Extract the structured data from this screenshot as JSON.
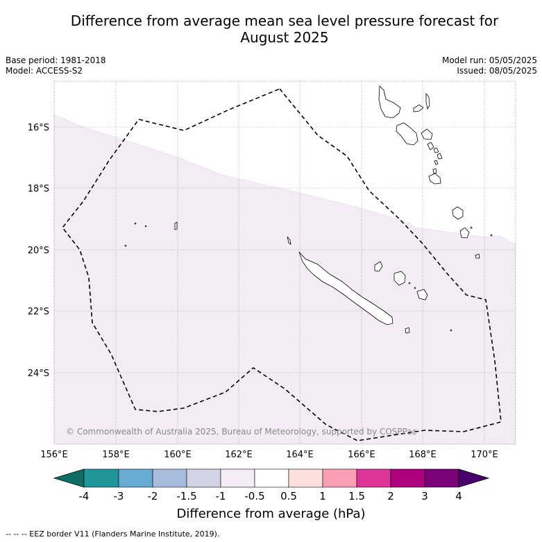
{
  "title_line1": "Difference from average mean sea level pressure forecast for",
  "title_line2": "August 2025",
  "info": {
    "base_period": "Base period: 1981-2018",
    "model": "Model: ACCESS-S2",
    "model_run": "Model run: 05/05/2025",
    "issued": "Issued: 08/05/2025"
  },
  "map": {
    "lon_range": [
      156,
      171
    ],
    "lat_range": [
      -26.3,
      -14.5
    ],
    "lon_ticks": [
      "156°E",
      "158°E",
      "160°E",
      "162°E",
      "164°E",
      "166°E",
      "168°E",
      "170°E"
    ],
    "lat_ticks": [
      "16°S",
      "18°S",
      "20°S",
      "22°S",
      "24°S"
    ],
    "anomaly_fill_color": "#f3ecf5",
    "anomaly_category": "-1 to -0.5 hPa",
    "copyright": "© Commonwealth of Australia 2025, Bureau of Meteorology, supported by COSPPac",
    "features": [
      "EEZ border (dashed)",
      "New Caledonia",
      "Vanuatu",
      "Loyalty Islands"
    ]
  },
  "colorbar": {
    "title": "Difference from average (hPa)",
    "tick_labels": [
      "-4",
      "-3",
      "-2",
      "-1.5",
      "-1",
      "-0.5",
      "0.5",
      "1",
      "1.5",
      "2",
      "3",
      "4"
    ],
    "colors": [
      "#0e6e66",
      "#1f9499",
      "#67abd2",
      "#a7bcdd",
      "#d3d5e7",
      "#f3ecf5",
      "#ffffff",
      "#fde0dd",
      "#fa9fb5",
      "#dd3497",
      "#ae017e",
      "#7a0177",
      "#49006a"
    ]
  },
  "footnote": "--  --  -- EEZ border V11 (Flanders Marine Institute, 2019)."
}
